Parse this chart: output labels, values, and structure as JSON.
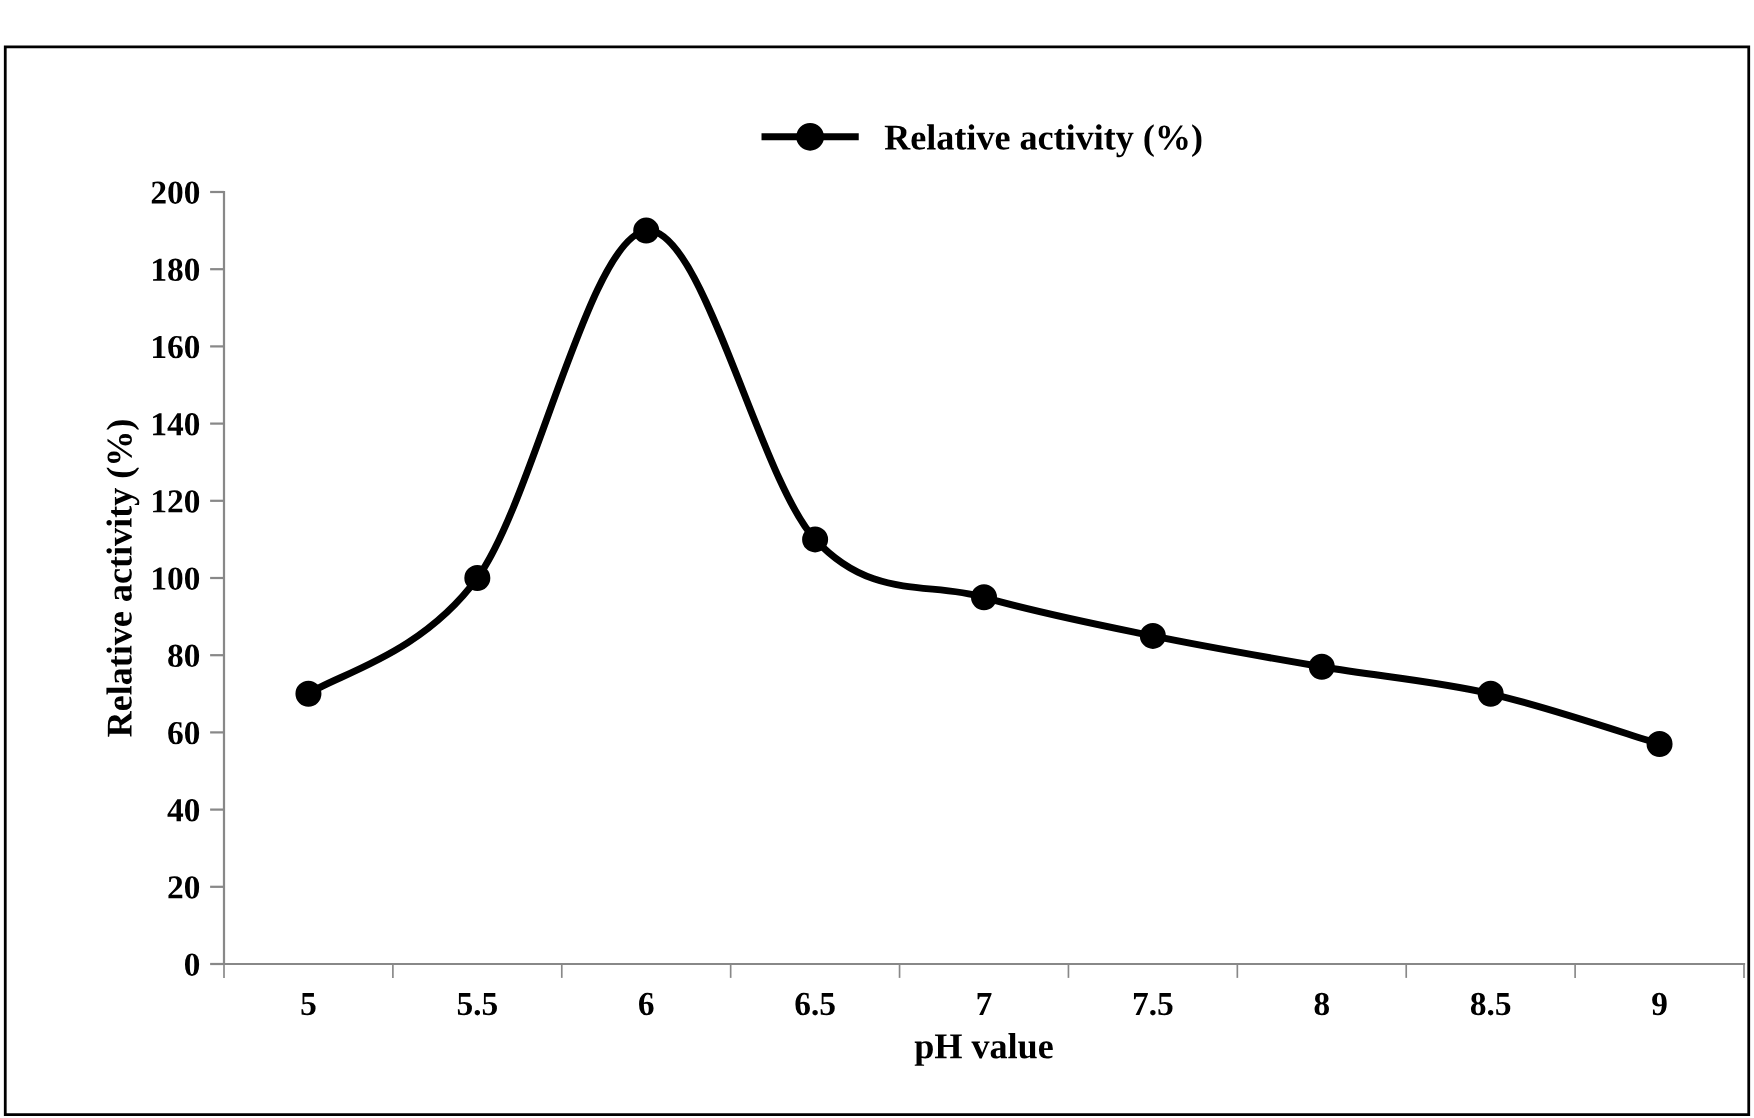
{
  "chart_data": {
    "type": "line",
    "xlabel": "pH value",
    "ylabel": "Relative activity (%)",
    "categories": [
      "5",
      "5.5",
      "6",
      "6.5",
      "7",
      "7.5",
      "8",
      "8.5",
      "9"
    ],
    "series": [
      {
        "name": "Relative activity (%)",
        "color": "#000000",
        "values": [
          70,
          100,
          190,
          110,
          95,
          85,
          77,
          70,
          57
        ]
      }
    ],
    "ylim": [
      0,
      200
    ],
    "yticks": [
      0,
      20,
      40,
      60,
      80,
      100,
      120,
      140,
      160,
      180,
      200
    ],
    "grid": false,
    "legend": "top",
    "marker": "circle",
    "line_style": "solid"
  }
}
